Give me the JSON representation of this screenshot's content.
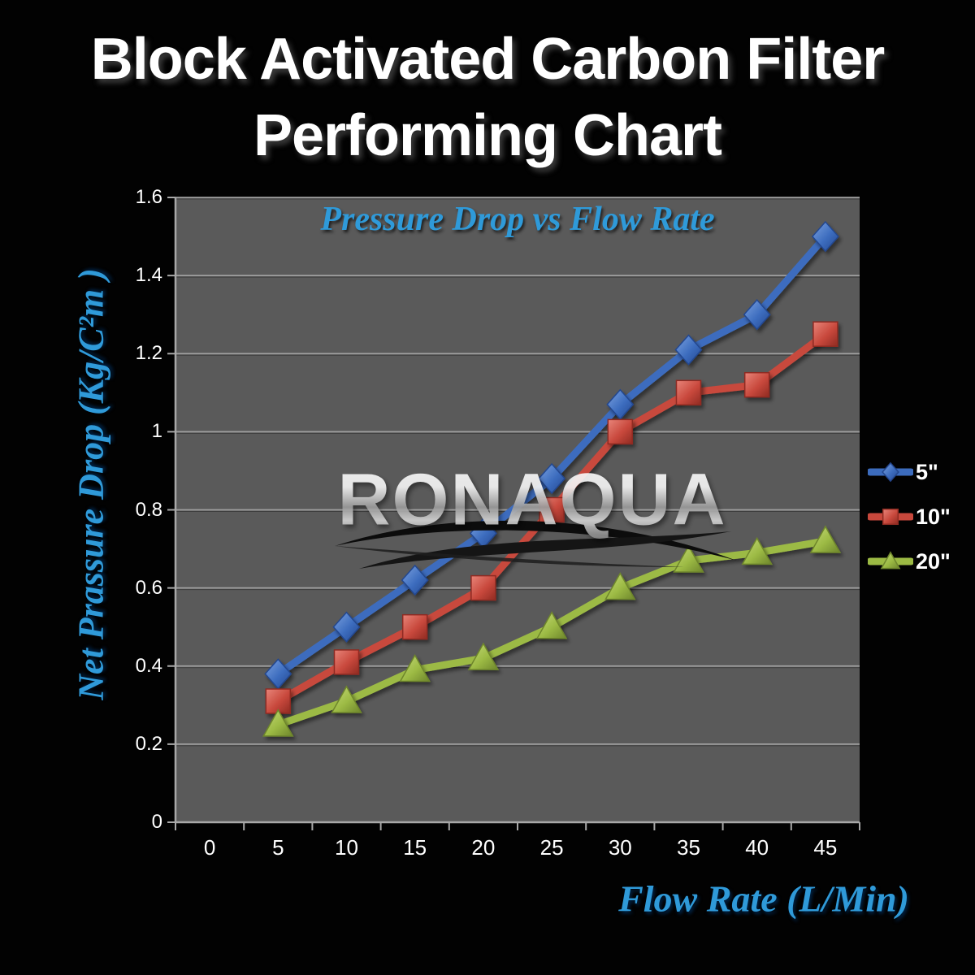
{
  "header": {
    "title_line1": "Block Activated Carbon Filter",
    "title_line2": "Performing Chart"
  },
  "watermark": {
    "text": "RONAQUA"
  },
  "colors": {
    "background": "#000000",
    "plot_bg": "#5a5a5a",
    "gridline": "#a0a0a0",
    "gridline_shadow": "#3e3e3e",
    "axis_line": "#a8a8a8",
    "tick_text": "#ffffff",
    "title_text": "#ffffff",
    "accent_blue": "#2f9ad9"
  },
  "chart_data": {
    "type": "line",
    "title": "Pressure Drop vs Flow Rate",
    "xlabel": "Flow Rate (L/Min)",
    "ylabel": "Net Prassure Drop (Kg/C²m )",
    "x_tick_labels": [
      "0",
      "5",
      "10",
      "15",
      "20",
      "25",
      "30",
      "35",
      "40",
      "45"
    ],
    "y_tick_labels": [
      "0",
      "0.2",
      "0.4",
      "0.6",
      "0.8",
      "1",
      "1.2",
      "1.4",
      "1.6"
    ],
    "ylim": [
      0,
      1.6
    ],
    "grid": true,
    "legend_position": "right",
    "x": [
      5,
      10,
      15,
      20,
      25,
      30,
      35,
      40,
      45
    ],
    "series": [
      {
        "name": "5\"",
        "marker": "diamond",
        "color": "#3c6cbe",
        "color_light": "#7da3e0",
        "color_dark": "#24478f",
        "values": [
          0.38,
          0.5,
          0.62,
          0.74,
          0.88,
          1.07,
          1.21,
          1.3,
          1.5
        ]
      },
      {
        "name": "10\"",
        "marker": "square",
        "color": "#c8483c",
        "color_light": "#e8857a",
        "color_dark": "#8f2b22",
        "values": [
          0.31,
          0.41,
          0.5,
          0.6,
          0.8,
          1.0,
          1.1,
          1.12,
          1.25
        ]
      },
      {
        "name": "20\"",
        "marker": "triangle",
        "color": "#9cba44",
        "color_light": "#c6da7c",
        "color_dark": "#6e862c",
        "values": [
          0.25,
          0.31,
          0.39,
          0.42,
          0.5,
          0.6,
          0.67,
          0.69,
          0.72
        ]
      }
    ]
  }
}
